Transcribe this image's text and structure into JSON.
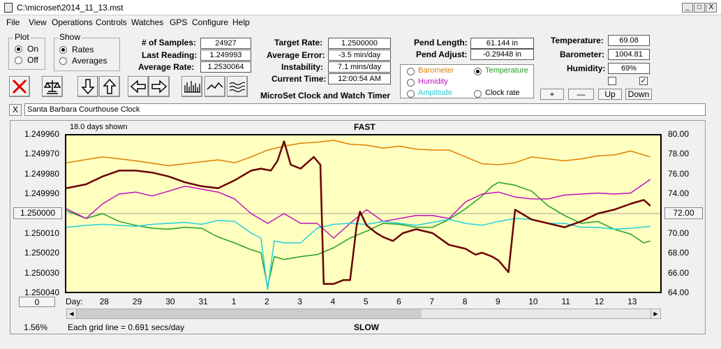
{
  "window": {
    "title": "C:\\microset\\2014_11_13.mst",
    "minimize": "_",
    "maximize": "□",
    "close": "X"
  },
  "menu": [
    "File",
    "View",
    "Operations",
    "Controls",
    "Watches",
    "GPS",
    "Configure",
    "Help"
  ],
  "plot_group": {
    "label": "Plot",
    "options": [
      "On",
      "Off"
    ],
    "selected": "On"
  },
  "show_group": {
    "label": "Show",
    "options": [
      "Rates",
      "Averages"
    ],
    "selected": "Rates"
  },
  "stats": {
    "samples_label": "# of Samples:",
    "samples": "24927",
    "last_reading_label": "Last Reading:",
    "last_reading": "1.249993",
    "average_rate_label": "Average Rate:",
    "average_rate": "1.2530064",
    "target_rate_label": "Target Rate:",
    "target_rate": "1.2500000",
    "average_error_label": "Average Error:",
    "average_error": "-3.5 min/day",
    "instability_label": "Instability:",
    "instability": "7.1 mins/day",
    "current_time_label": "Current Time:",
    "current_time": "12:00:54 AM",
    "pend_length_label": "Pend Length:",
    "pend_length": "61.144 in",
    "pend_adjust_label": "Pend Adjust:",
    "pend_adjust": "-0.29448 in",
    "temperature_label": "Temperature:",
    "temperature": "69.08",
    "barometer_label": "Barometer:",
    "barometer": "1004.81",
    "humidity_label": "Humidity:",
    "humidity": "69%"
  },
  "app_caption": "MicroSet Clock and Watch Timer",
  "overlay_options": {
    "barometer": "Barometer",
    "temperature": "Temperature",
    "humidity": "Humidity",
    "clock_rate": "Clock rate",
    "amplitude": "Amplitude",
    "selected": "Temperature"
  },
  "adjust_buttons": {
    "plus": "+",
    "minus": "—",
    "up": "Up",
    "down": "Down"
  },
  "clock_name_clear": "X",
  "clock_name": "Santa Barbara Courthouse Clock",
  "chart_labels": {
    "days_shown": "18.0 days shown",
    "fast": "FAST",
    "slow": "SLOW",
    "grid_note": "Each grid line = 0.691 secs/day",
    "percent": "1.56%",
    "day_prefix": "Day:",
    "left_center_value": "1.250000",
    "right_center_value": "72.00",
    "offset_value": "0"
  },
  "colors": {
    "plot_bg": "#ffffc0",
    "rate": "#6b0000",
    "temperature": "#e08000",
    "barometer": "#20a020",
    "humidity": "#c010c0",
    "amplitude": "#20d0e0"
  },
  "chart_data": {
    "type": "line",
    "xlabel": "Day:",
    "x_ticks": [
      "28",
      "29",
      "30",
      "31",
      "1",
      "2",
      "3",
      "4",
      "5",
      "6",
      "7",
      "8",
      "9",
      "10",
      "11",
      "12",
      "13"
    ],
    "y_left_ticks": [
      "1.249960",
      "1.249970",
      "1.249980",
      "1.249990",
      "1.250000",
      "1.250010",
      "1.250020",
      "1.250030",
      "1.250040"
    ],
    "y_right_ticks": [
      "80.00",
      "78.00",
      "76.00",
      "74.00",
      "72.00",
      "70.00",
      "68.00",
      "66.00",
      "64.00"
    ],
    "ylim_left": [
      1.24996,
      1.25004
    ],
    "ylim_right": [
      64,
      80
    ],
    "grid": false,
    "x_range": [
      27.4,
      45.4
    ],
    "series": [
      {
        "name": "Rate",
        "x": [
          27.4,
          28.0,
          28.5,
          29.0,
          29.5,
          30.0,
          30.5,
          31.0,
          31.5,
          32.0,
          32.5,
          33.0,
          33.3,
          33.6,
          33.8,
          34.0,
          34.2,
          34.5,
          34.9,
          35.1,
          35.2,
          35.5,
          35.8,
          36.0,
          36.2,
          36.3,
          36.5,
          36.8,
          37.0,
          37.3,
          37.6,
          38.0,
          38.5,
          39.0,
          39.5,
          39.8,
          40.0,
          40.3,
          40.5,
          40.8,
          41.0,
          41.5,
          42.0,
          42.5,
          43.0,
          43.5,
          44.0,
          44.5,
          44.9,
          45.1
        ],
        "y": [
          1.249987,
          1.249985,
          1.249981,
          1.249978,
          1.249978,
          1.249979,
          1.249981,
          1.249984,
          1.249986,
          1.249987,
          1.249983,
          1.249978,
          1.249977,
          1.249978,
          1.249973,
          1.249963,
          1.249975,
          1.249977,
          1.249971,
          1.249975,
          1.250036,
          1.250036,
          1.250034,
          1.250034,
          1.250006,
          1.249999,
          1.250006,
          1.25001,
          1.250012,
          1.250014,
          1.25001,
          1.250008,
          1.25001,
          1.250016,
          1.250018,
          1.250021,
          1.25002,
          1.250022,
          1.250024,
          1.25003,
          1.249998,
          1.250003,
          1.250005,
          1.250007,
          1.250004,
          1.25,
          1.249998,
          1.249995,
          1.249993,
          1.249996
        ]
      },
      {
        "name": "Temperature",
        "x": [
          27.4,
          28.5,
          29.5,
          30.5,
          31.5,
          32.0,
          32.5,
          33.0,
          33.5,
          34.0,
          34.5,
          35.0,
          35.5,
          36.0,
          36.5,
          37.0,
          37.5,
          38.0,
          38.5,
          39.0,
          39.5,
          40.0,
          40.5,
          41.0,
          41.5,
          42.0,
          42.5,
          43.0,
          43.5,
          44.0,
          44.5,
          45.1
        ],
        "y": [
          77.2,
          77.8,
          77.4,
          76.9,
          77.3,
          77.5,
          77.2,
          77.8,
          78.5,
          78.9,
          79.2,
          79.3,
          79.5,
          79.1,
          79.0,
          78.7,
          78.9,
          78.6,
          78.5,
          78.5,
          77.8,
          77.1,
          77.0,
          77.2,
          77.8,
          77.6,
          77.4,
          77.6,
          77.9,
          78.0,
          78.4,
          77.8
        ]
      },
      {
        "name": "Barometer",
        "x": [
          27.4,
          28.0,
          28.5,
          29.0,
          29.5,
          30.0,
          30.5,
          31.0,
          31.5,
          32.0,
          32.5,
          33.0,
          33.3,
          33.5,
          33.7,
          34.0,
          34.5,
          35.0,
          35.5,
          36.0,
          36.5,
          37.0,
          37.5,
          38.0,
          38.5,
          39.0,
          39.5,
          40.0,
          40.3,
          40.5,
          41.0,
          41.5,
          42.0,
          42.5,
          43.0,
          43.5,
          44.0,
          44.5,
          44.9,
          45.1
        ],
        "y": [
          72.3,
          71.5,
          72.0,
          71.2,
          70.8,
          70.5,
          70.4,
          70.6,
          70.5,
          69.6,
          69.0,
          68.3,
          68.0,
          64.5,
          67.6,
          67.3,
          67.6,
          67.8,
          68.5,
          69.5,
          70.2,
          71.0,
          70.9,
          70.6,
          70.6,
          71.4,
          72.5,
          73.8,
          74.8,
          75.2,
          74.9,
          74.3,
          72.8,
          71.8,
          71.0,
          71.2,
          70.4,
          69.9,
          69.0,
          69.2
        ]
      },
      {
        "name": "Humidity",
        "x": [
          27.4,
          28.0,
          28.5,
          29.0,
          29.5,
          30.0,
          30.5,
          31.0,
          31.5,
          32.0,
          32.5,
          33.0,
          33.5,
          34.0,
          34.5,
          35.0,
          35.5,
          36.0,
          36.5,
          37.0,
          37.5,
          38.0,
          38.5,
          39.0,
          39.5,
          40.0,
          40.5,
          41.0,
          41.5,
          42.0,
          42.5,
          43.0,
          43.5,
          44.0,
          44.5,
          45.1
        ],
        "y": [
          72.5,
          71.5,
          73.0,
          74.0,
          74.2,
          73.8,
          74.3,
          74.8,
          74.5,
          74.2,
          73.5,
          72.0,
          71.0,
          72.0,
          71.0,
          71.0,
          69.5,
          71.0,
          72.4,
          71.2,
          71.5,
          71.8,
          71.8,
          71.5,
          73.2,
          74.0,
          74.2,
          73.7,
          73.5,
          73.5,
          73.9,
          74.0,
          74.1,
          74.0,
          74.1,
          75.5
        ]
      },
      {
        "name": "Amplitude",
        "x": [
          27.4,
          28.0,
          28.5,
          29.0,
          29.5,
          30.0,
          30.5,
          31.0,
          31.5,
          32.0,
          32.5,
          33.0,
          33.3,
          33.5,
          33.7,
          34.0,
          34.5,
          35.0,
          35.5,
          36.0,
          36.5,
          37.0,
          37.5,
          38.0,
          38.5,
          39.0,
          39.5,
          40.0,
          40.5,
          41.0,
          41.5,
          42.0,
          42.5,
          43.0,
          43.5,
          44.0,
          44.5,
          45.1
        ],
        "y": [
          70.6,
          70.8,
          70.9,
          70.8,
          70.7,
          70.9,
          71.0,
          71.1,
          70.9,
          71.3,
          71.2,
          70.0,
          69.5,
          64.2,
          69.2,
          69.0,
          69.0,
          70.5,
          70.9,
          71.0,
          70.9,
          71.2,
          71.0,
          70.8,
          71.1,
          71.4,
          71.0,
          70.8,
          71.2,
          71.5,
          71.4,
          71.0,
          71.0,
          70.6,
          70.6,
          70.4,
          70.5,
          70.7
        ]
      }
    ]
  }
}
